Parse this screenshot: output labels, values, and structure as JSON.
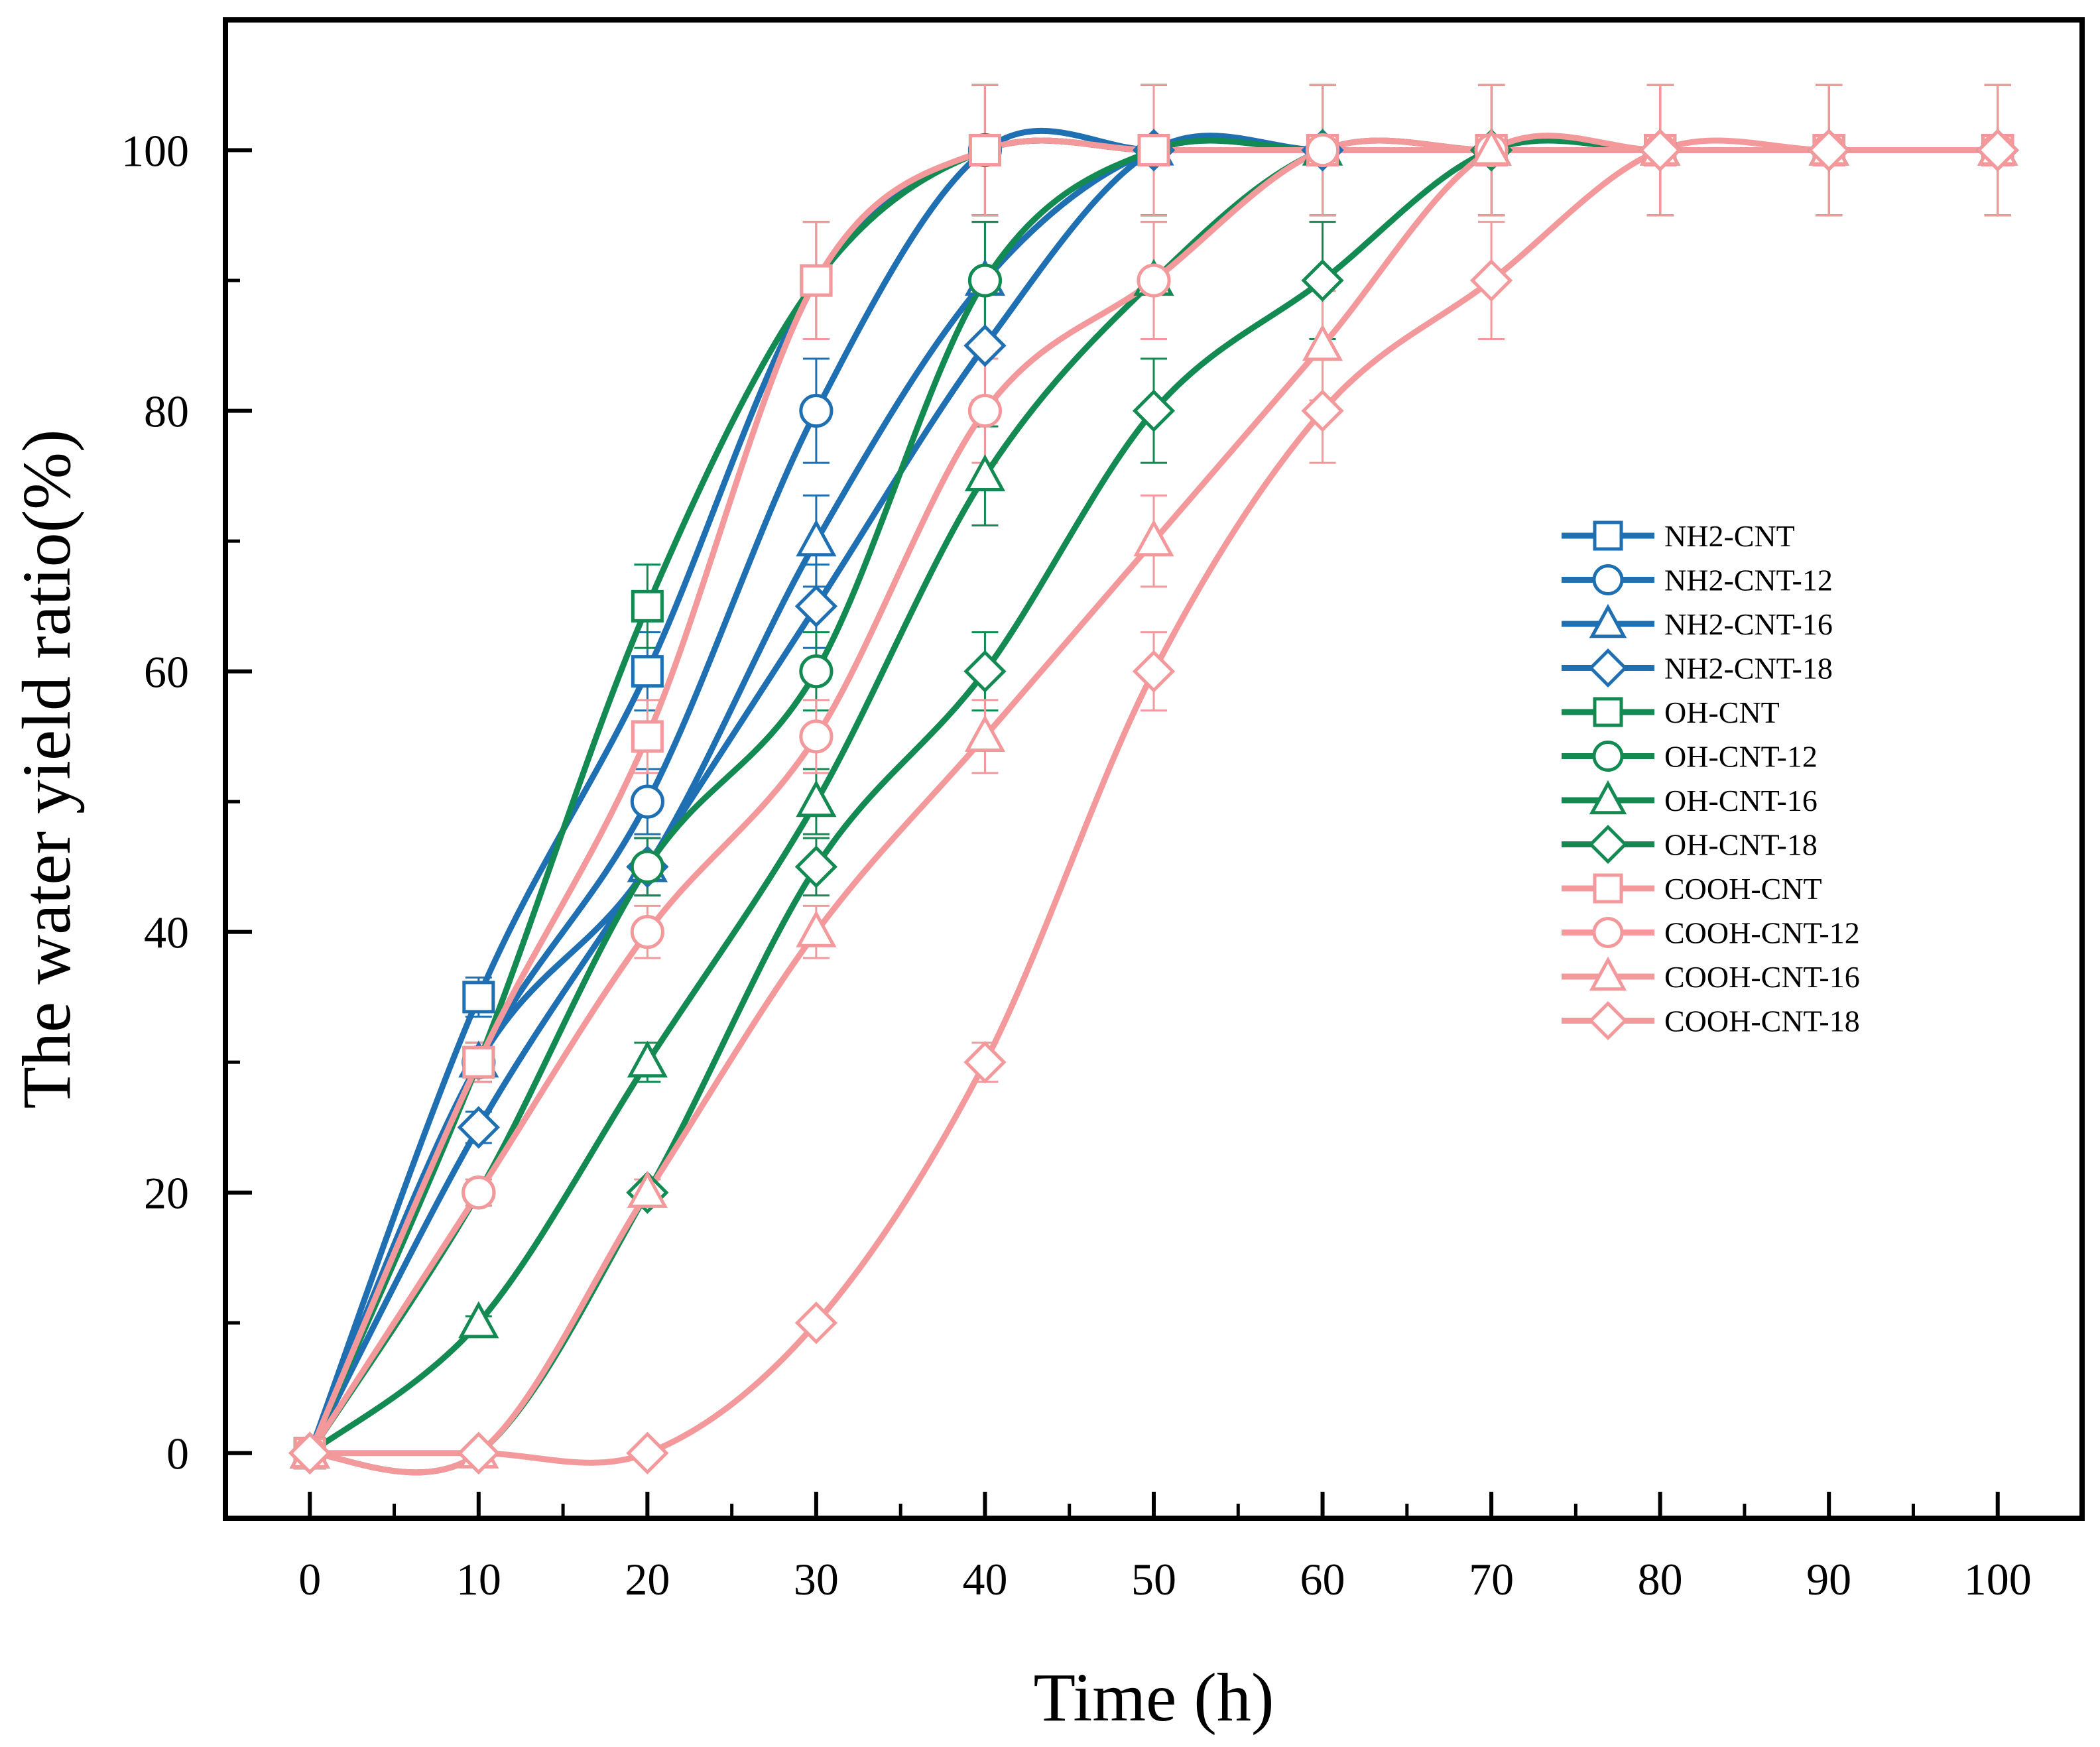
{
  "chart_data": {
    "type": "line",
    "title": "",
    "xlabel": "Time (h)",
    "ylabel": "The water yield ratio(%)",
    "xlim": [
      -5,
      105
    ],
    "ylim": [
      -5,
      110
    ],
    "x_ticks": [
      0,
      10,
      20,
      30,
      40,
      50,
      60,
      70,
      80,
      90,
      100
    ],
    "y_ticks": [
      0,
      20,
      40,
      60,
      80,
      100
    ],
    "x_tick_labels": [
      "0",
      "10",
      "20",
      "30",
      "40",
      "50",
      "60",
      "70",
      "80",
      "90",
      "100"
    ],
    "y_tick_labels": [
      "0",
      "20",
      "40",
      "60",
      "80",
      "100"
    ],
    "grid": false,
    "legend_position": "right",
    "x": [
      0,
      10,
      20,
      30,
      40,
      50,
      60,
      70,
      80,
      90,
      100
    ],
    "series": [
      {
        "name": "NH2-CNT",
        "color": "#1f6fb3",
        "marker": "square",
        "values": [
          0,
          35,
          60,
          90,
          100,
          100,
          100,
          100,
          100,
          100,
          100
        ],
        "error": [
          0,
          1.5,
          3,
          4.5,
          5,
          5,
          5,
          5,
          5,
          5,
          5
        ]
      },
      {
        "name": "NH2-CNT-12",
        "color": "#1f6fb3",
        "marker": "circle",
        "values": [
          0,
          30,
          50,
          80,
          100,
          100,
          100,
          100,
          100,
          100,
          100
        ],
        "error": [
          0,
          1.5,
          2.5,
          4,
          5,
          5,
          5,
          5,
          5,
          5,
          5
        ]
      },
      {
        "name": "NH2-CNT-16",
        "color": "#1f6fb3",
        "marker": "triangle",
        "values": [
          0,
          30,
          45,
          70,
          90,
          100,
          100,
          100,
          100,
          100,
          100
        ],
        "error": [
          0,
          1.5,
          2.2,
          3.5,
          4.5,
          5,
          5,
          5,
          5,
          5,
          5
        ]
      },
      {
        "name": "NH2-CNT-18",
        "color": "#1f6fb3",
        "marker": "diamond",
        "values": [
          0,
          25,
          45,
          65,
          85,
          100,
          100,
          100,
          100,
          100,
          100
        ],
        "error": [
          0,
          1.2,
          2.2,
          3.2,
          4.2,
          5,
          5,
          5,
          5,
          5,
          5
        ]
      },
      {
        "name": "OH-CNT",
        "color": "#138a52",
        "marker": "square",
        "values": [
          0,
          30,
          65,
          90,
          100,
          100,
          100,
          100,
          100,
          100,
          100
        ],
        "error": [
          0,
          1.5,
          3.2,
          4.5,
          5,
          5,
          5,
          5,
          5,
          5,
          5
        ]
      },
      {
        "name": "OH-CNT-12",
        "color": "#138a52",
        "marker": "circle",
        "values": [
          0,
          20,
          45,
          60,
          90,
          100,
          100,
          100,
          100,
          100,
          100
        ],
        "error": [
          0,
          1,
          2.2,
          3,
          4.5,
          5,
          5,
          5,
          5,
          5,
          5
        ]
      },
      {
        "name": "OH-CNT-16",
        "color": "#138a52",
        "marker": "triangle",
        "values": [
          0,
          10,
          30,
          50,
          75,
          90,
          100,
          100,
          100,
          100,
          100
        ],
        "error": [
          0,
          0.5,
          1.5,
          2.5,
          3.8,
          4.5,
          5,
          5,
          5,
          5,
          5
        ]
      },
      {
        "name": "OH-CNT-18",
        "color": "#138a52",
        "marker": "diamond",
        "values": [
          0,
          0,
          20,
          45,
          60,
          80,
          90,
          100,
          100,
          100,
          100
        ],
        "error": [
          0,
          0,
          1,
          2.2,
          3,
          4,
          4.5,
          5,
          5,
          5,
          5
        ]
      },
      {
        "name": "COOH-CNT",
        "color": "#f4999b",
        "marker": "square",
        "values": [
          0,
          30,
          55,
          90,
          100,
          100,
          100,
          100,
          100,
          100,
          100
        ],
        "error": [
          0,
          1.5,
          2.8,
          4.5,
          5,
          5,
          5,
          5,
          5,
          5,
          5
        ]
      },
      {
        "name": "COOH-CNT-12",
        "color": "#f4999b",
        "marker": "circle",
        "values": [
          0,
          20,
          40,
          55,
          80,
          90,
          100,
          100,
          100,
          100,
          100
        ],
        "error": [
          0,
          1,
          2,
          2.8,
          4,
          4.5,
          5,
          5,
          5,
          5,
          5
        ]
      },
      {
        "name": "COOH-CNT-16",
        "color": "#f4999b",
        "marker": "triangle",
        "values": [
          0,
          0,
          20,
          40,
          55,
          70,
          85,
          100,
          100,
          100,
          100
        ],
        "error": [
          0,
          0,
          1,
          2,
          2.8,
          3.5,
          4.2,
          5,
          5,
          5,
          5
        ]
      },
      {
        "name": "COOH-CNT-18",
        "color": "#f4999b",
        "marker": "diamond",
        "values": [
          0,
          0,
          0,
          10,
          30,
          60,
          80,
          90,
          100,
          100,
          100
        ],
        "error": [
          0,
          0,
          0,
          0.5,
          1.5,
          3,
          4,
          4.5,
          5,
          5,
          5
        ]
      }
    ]
  }
}
